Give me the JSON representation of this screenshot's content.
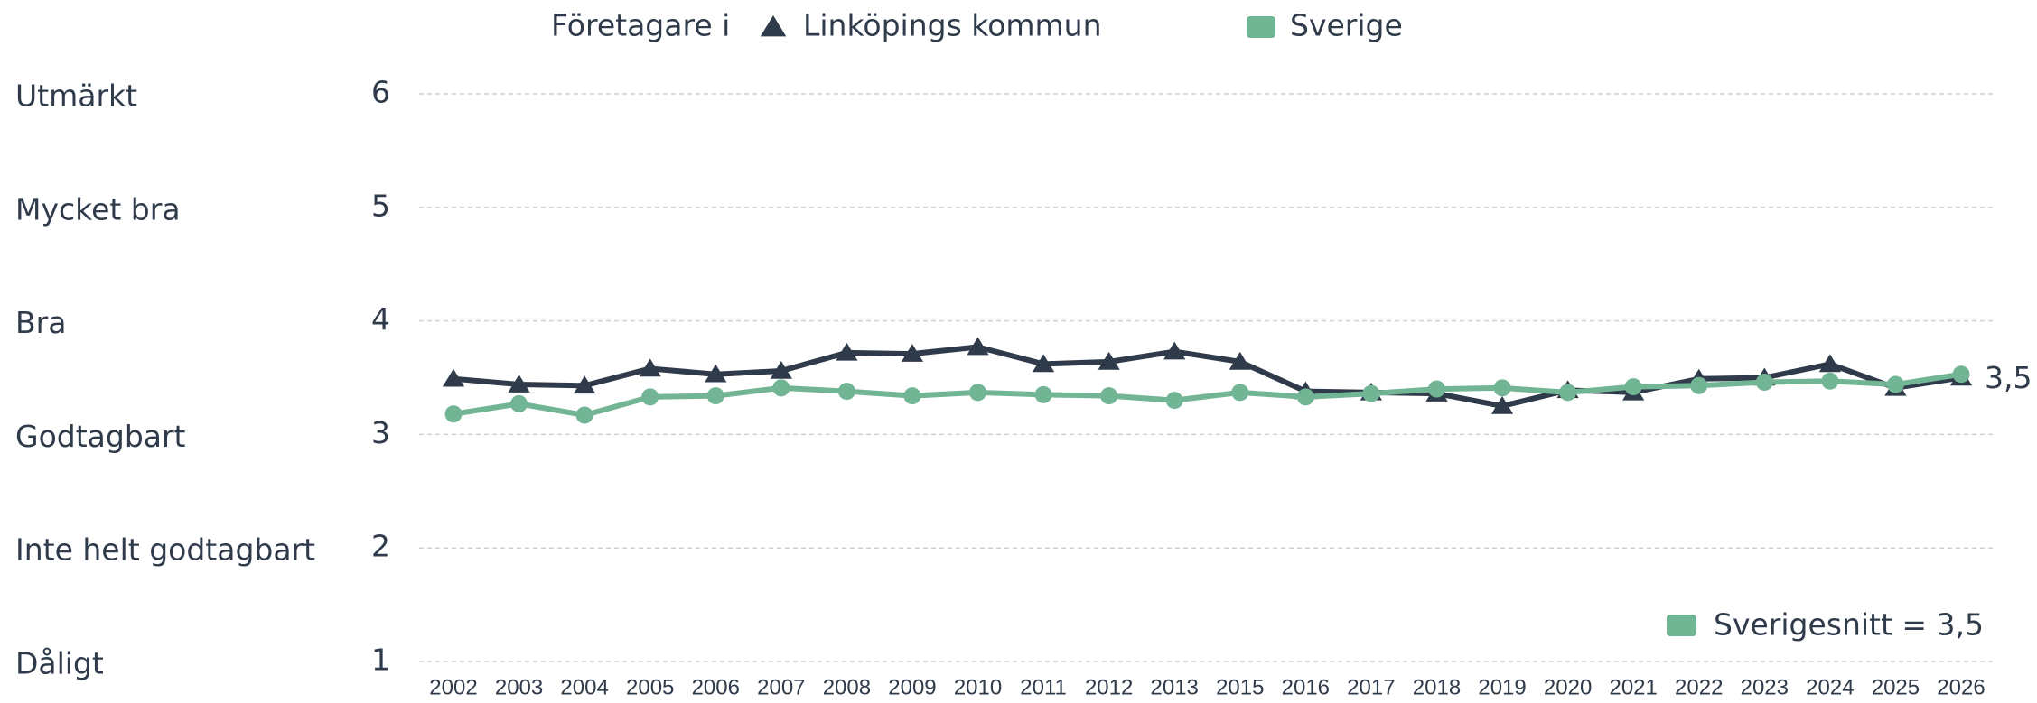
{
  "chart_data": {
    "type": "line",
    "legend_title": "Företagare i",
    "categories": [
      "2002",
      "2003",
      "2004",
      "2005",
      "2006",
      "2007",
      "2008",
      "2009",
      "2010",
      "2011",
      "2012",
      "2013",
      "2015",
      "2016",
      "2017",
      "2018",
      "2019",
      "2020",
      "2021",
      "2022",
      "2023",
      "2024",
      "2025",
      "2026"
    ],
    "series": [
      {
        "name": "Linköpings kommun",
        "color": "#2f3b4a",
        "marker": "triangle",
        "values": [
          3.49,
          3.44,
          3.43,
          3.58,
          3.53,
          3.56,
          3.72,
          3.71,
          3.77,
          3.62,
          3.64,
          3.73,
          3.64,
          3.38,
          3.37,
          3.36,
          3.25,
          3.39,
          3.37,
          3.49,
          3.5,
          3.62,
          3.41,
          3.5
        ],
        "value_labels": [
          null,
          null,
          null,
          null,
          null,
          null,
          null,
          null,
          null,
          null,
          null,
          null,
          null,
          null,
          null,
          null,
          null,
          null,
          null,
          null,
          null,
          null,
          null,
          "3,5"
        ]
      },
      {
        "name": "Sverige",
        "color": "#72b595",
        "marker": "circle",
        "values": [
          3.18,
          3.27,
          3.17,
          3.33,
          3.34,
          3.41,
          3.38,
          3.34,
          3.37,
          3.35,
          3.34,
          3.3,
          3.37,
          3.33,
          3.36,
          3.4,
          3.41,
          3.37,
          3.42,
          3.43,
          3.46,
          3.47,
          3.44,
          3.53
        ]
      }
    ],
    "ylim": [
      1,
      6
    ],
    "yticks": [
      1,
      2,
      3,
      4,
      5,
      6
    ],
    "y_level_names": [
      "Dåligt",
      "Inte helt godtagbart",
      "Godtagbart",
      "Bra",
      "Mycket bra",
      "Utmärkt"
    ],
    "grid": true,
    "annotation": {
      "text": "Sverigesnitt = 3,5",
      "color": "#72b595"
    }
  }
}
